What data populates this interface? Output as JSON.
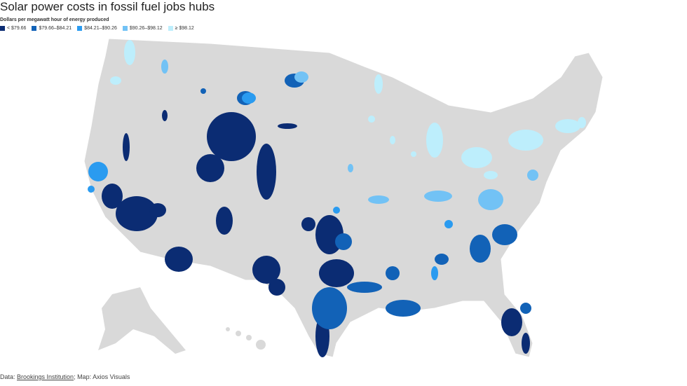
{
  "header": {
    "title": "Solar power costs in fossil fuel jobs hubs",
    "subtitle": "Dollars per megawatt hour of energy produced"
  },
  "legend": {
    "items": [
      {
        "label": "< $79.66",
        "color": "#0b2c73"
      },
      {
        "label": "$79.66–$84.21",
        "color": "#1262b7"
      },
      {
        "label": "$84.21–$90.26",
        "color": "#2a9bf0"
      },
      {
        "label": "$90.26–$98.12",
        "color": "#72c2f5"
      },
      {
        "label": "≥ $98.12",
        "color": "#bdeefc"
      }
    ]
  },
  "source": {
    "prefix": "Data: ",
    "link": "Brookings Institution",
    "suffix": "; Map: Axios Visuals"
  }
}
